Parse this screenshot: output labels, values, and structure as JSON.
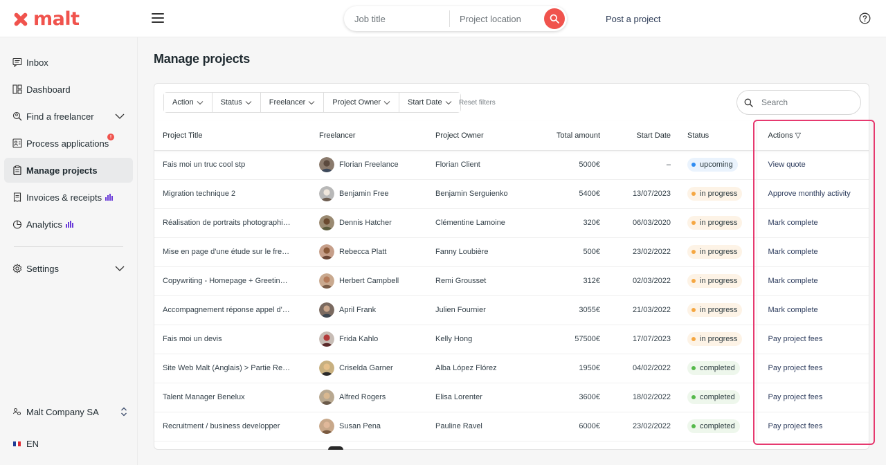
{
  "brand": {
    "name": "malt",
    "color": "#f0534d"
  },
  "header": {
    "search": {
      "job_placeholder": "Job title",
      "location_placeholder": "Project location"
    },
    "post_project": "Post a project",
    "help_icon": "question-circle-icon",
    "menu_icon": "hamburger-icon"
  },
  "sidebar": {
    "items": [
      {
        "label": "Inbox",
        "icon": "message-icon"
      },
      {
        "label": "Dashboard",
        "icon": "dashboard-icon"
      },
      {
        "label": "Find a freelancer",
        "icon": "search-person-icon",
        "expandable": true
      },
      {
        "label": "Process applications",
        "icon": "applications-icon",
        "badge": "!"
      },
      {
        "label": "Manage projects",
        "icon": "clipboard-icon",
        "active": true
      },
      {
        "label": "Invoices & receipts",
        "icon": "invoice-icon",
        "bars": true
      },
      {
        "label": "Analytics",
        "icon": "analytics-icon",
        "bars": true
      },
      {
        "label": "Settings",
        "icon": "gear-icon",
        "expandable": true
      }
    ],
    "company": "Malt Company SA",
    "language": "EN"
  },
  "main": {
    "title": "Manage projects",
    "filters": [
      "Action",
      "Status",
      "Freelancer",
      "Project Owner",
      "Start Date"
    ],
    "reset_filters": "Reset filters",
    "search_placeholder": "Search",
    "columns": {
      "title": "Project Title",
      "freelancer": "Freelancer",
      "owner": "Project Owner",
      "amount": "Total amount",
      "date": "Start Date",
      "status": "Status",
      "actions": "Actions ▽"
    },
    "rows": [
      {
        "title": "Fais moi un truc cool stp",
        "freelancer": "Florian Freelance",
        "owner": "Florian Client",
        "amount": "5000€",
        "date": "–",
        "status": "upcoming",
        "action": "View quote"
      },
      {
        "title": "Migration technique 2",
        "freelancer": "Benjamin Free",
        "owner": "Benjamin Serguienko",
        "amount": "5400€",
        "date": "13/07/2023",
        "status": "in progress",
        "action": "Approve monthly activity"
      },
      {
        "title": "Réalisation de portraits photographiq...",
        "freelancer": "Dennis Hatcher",
        "owner": "Clémentine Lamoine",
        "amount": "320€",
        "date": "06/03/2020",
        "status": "in progress",
        "action": "Mark complete"
      },
      {
        "title": "Mise en page d'une étude sur le freel...",
        "freelancer": "Rebecca Platt",
        "owner": "Fanny Loubière",
        "amount": "500€",
        "date": "23/02/2022",
        "status": "in progress",
        "action": "Mark complete"
      },
      {
        "title": "Copywriting - Homepage + Greeting ...",
        "freelancer": "Herbert Campbell",
        "owner": "Remi Grousset",
        "amount": "312€",
        "date": "02/03/2022",
        "status": "in progress",
        "action": "Mark complete"
      },
      {
        "title": "Accompagnement réponse appel d'o...",
        "freelancer": "April Frank",
        "owner": "Julien Fournier",
        "amount": "3055€",
        "date": "21/03/2022",
        "status": "in progress",
        "action": "Mark complete"
      },
      {
        "title": "Fais moi un devis",
        "freelancer": "Frida Kahlo",
        "owner": "Kelly Hong",
        "amount": "57500€",
        "date": "17/07/2023",
        "status": "in progress",
        "action": "Pay project fees"
      },
      {
        "title": "Site Web Malt (Anglais) > Partie Relec...",
        "freelancer": "Criselda Garner",
        "owner": "Alba López Flórez",
        "amount": "1950€",
        "date": "04/02/2022",
        "status": "completed",
        "action": "Pay project fees"
      },
      {
        "title": "Talent Manager Benelux",
        "freelancer": "Alfred Rogers",
        "owner": "Elisa Lorenter",
        "amount": "3600€",
        "date": "18/02/2022",
        "status": "completed",
        "action": "Pay project fees"
      },
      {
        "title": "Recruitment / business developper",
        "freelancer": "Susan Pena",
        "owner": "Pauline Ravel",
        "amount": "6000€",
        "date": "23/02/2022",
        "status": "completed",
        "action": "Pay project fees"
      }
    ]
  },
  "status_colors": {
    "upcoming": {
      "dot": "#2f8cf2",
      "bg": "#eaf3fd"
    },
    "in progress": {
      "dot": "#f5a742",
      "bg": "#fdf3e6"
    },
    "completed": {
      "dot": "#55b94a",
      "bg": "#eef7ec"
    }
  },
  "highlight_color": "#e6396f"
}
